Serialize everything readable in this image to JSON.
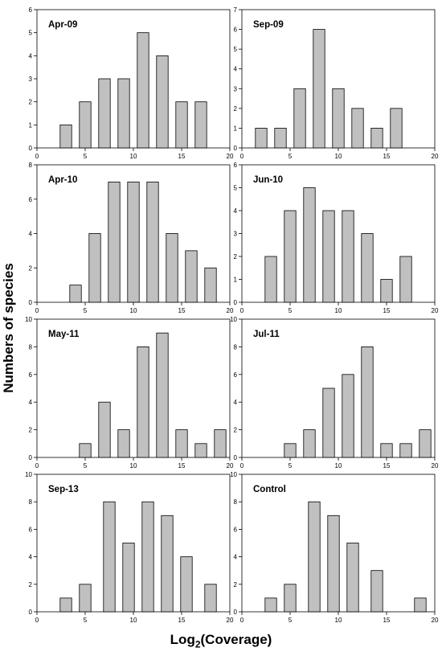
{
  "figure": {
    "ylabel": "Numbers of species",
    "xlabel_prefix": "Log",
    "xlabel_sub": "2",
    "xlabel_suffix": "(Coverage)",
    "bar_color": "#c0c0c0",
    "bar_stroke": "#000000"
  },
  "chart_data": [
    {
      "type": "bar",
      "title": "Apr-09",
      "xlim": [
        0,
        20
      ],
      "ylim": [
        0,
        6
      ],
      "xticks": [
        0,
        5,
        10,
        15,
        20
      ],
      "yticks": [
        0,
        1,
        2,
        3,
        4,
        5,
        6
      ],
      "bar_width": 1.2,
      "x": [
        3,
        5,
        7,
        9,
        11,
        13,
        15,
        17
      ],
      "values": [
        1,
        2,
        3,
        3,
        5,
        4,
        2,
        2
      ]
    },
    {
      "type": "bar",
      "title": "Sep-09",
      "xlim": [
        0,
        20
      ],
      "ylim": [
        0,
        7
      ],
      "xticks": [
        0,
        5,
        10,
        15,
        20
      ],
      "yticks": [
        0,
        1,
        2,
        3,
        4,
        5,
        6,
        7
      ],
      "bar_width": 1.2,
      "x": [
        2,
        4,
        6,
        8,
        10,
        12,
        14,
        16
      ],
      "values": [
        1,
        1,
        3,
        6,
        3,
        2,
        1,
        2
      ]
    },
    {
      "type": "bar",
      "title": "Apr-10",
      "xlim": [
        0,
        20
      ],
      "ylim": [
        0,
        8
      ],
      "xticks": [
        0,
        5,
        10,
        15,
        20
      ],
      "yticks": [
        0,
        2,
        4,
        6,
        8
      ],
      "bar_width": 1.2,
      "x": [
        4,
        6,
        8,
        10,
        12,
        14,
        16,
        18
      ],
      "values": [
        1,
        4,
        7,
        7,
        7,
        4,
        3,
        2
      ]
    },
    {
      "type": "bar",
      "title": "Jun-10",
      "xlim": [
        0,
        20
      ],
      "ylim": [
        0,
        6
      ],
      "xticks": [
        0,
        5,
        10,
        15,
        20
      ],
      "yticks": [
        0,
        1,
        2,
        3,
        4,
        5,
        6
      ],
      "bar_width": 1.2,
      "x": [
        3,
        5,
        7,
        9,
        11,
        13,
        15,
        17,
        19
      ],
      "values": [
        2,
        4,
        5,
        4,
        4,
        3,
        1,
        2,
        0
      ]
    },
    {
      "type": "bar",
      "title": "May-11",
      "xlim": [
        0,
        20
      ],
      "ylim": [
        0,
        10
      ],
      "xticks": [
        0,
        5,
        10,
        15,
        20
      ],
      "yticks": [
        0,
        2,
        4,
        6,
        8,
        10
      ],
      "bar_width": 1.2,
      "x": [
        5,
        7,
        9,
        11,
        13,
        15,
        17,
        19
      ],
      "values": [
        1,
        4,
        2,
        8,
        9,
        2,
        1,
        2
      ]
    },
    {
      "type": "bar",
      "title": "Jul-11",
      "xlim": [
        0,
        20
      ],
      "ylim": [
        0,
        10
      ],
      "xticks": [
        0,
        5,
        10,
        15,
        20
      ],
      "yticks": [
        0,
        2,
        4,
        6,
        8,
        10
      ],
      "bar_width": 1.2,
      "x": [
        5,
        7,
        9,
        11,
        13,
        15,
        17,
        19
      ],
      "values": [
        1,
        2,
        5,
        6,
        8,
        1,
        1,
        2
      ]
    },
    {
      "type": "bar",
      "title": "Sep-13",
      "xlim": [
        0,
        20
      ],
      "ylim": [
        0,
        10
      ],
      "xticks": [
        0,
        5,
        10,
        15,
        20
      ],
      "yticks": [
        0,
        2,
        4,
        6,
        8,
        10
      ],
      "bar_width": 1.2,
      "x": [
        3,
        5,
        7.5,
        9.5,
        11.5,
        13.5,
        15.5,
        18
      ],
      "values": [
        1,
        2,
        8,
        5,
        8,
        7,
        4,
        2
      ]
    },
    {
      "type": "bar",
      "title": "Control",
      "xlim": [
        0,
        20
      ],
      "ylim": [
        0,
        10
      ],
      "xticks": [
        0,
        5,
        10,
        15,
        20
      ],
      "yticks": [
        0,
        2,
        4,
        6,
        8,
        10
      ],
      "bar_width": 1.2,
      "x": [
        3,
        5,
        7.5,
        9.5,
        11.5,
        14,
        16.5,
        18.5
      ],
      "values": [
        1,
        2,
        8,
        7,
        5,
        3,
        0,
        1
      ]
    }
  ]
}
